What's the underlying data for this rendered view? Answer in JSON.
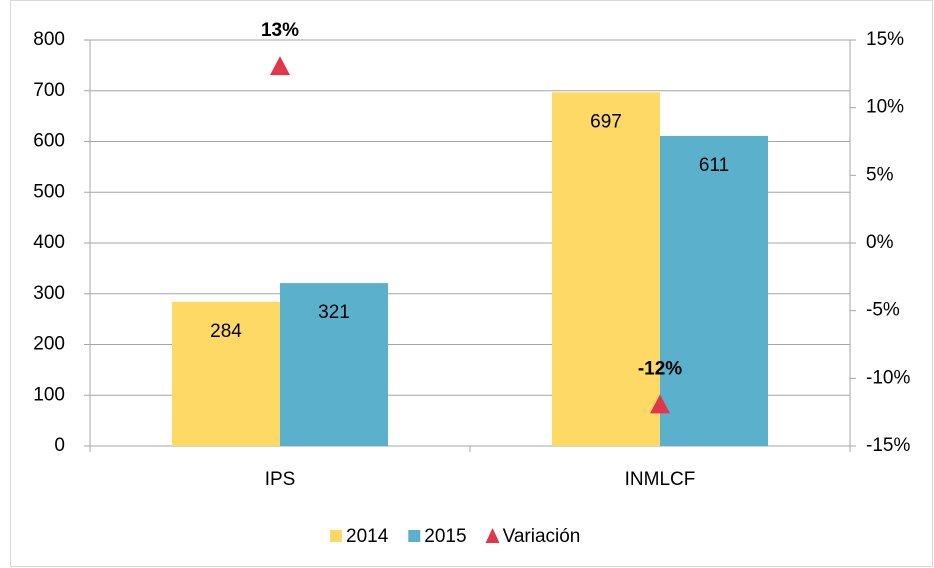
{
  "chart_data": {
    "type": "bar",
    "categories": [
      "IPS",
      "INMLCF"
    ],
    "series": [
      {
        "name": "2014",
        "color": "#ffd966",
        "values": [
          284,
          697
        ]
      },
      {
        "name": "2015",
        "color": "#5bb1cb",
        "values": [
          321,
          611
        ]
      },
      {
        "name": "Variación",
        "type": "scatter",
        "axis": "y2",
        "color": "#e0384a",
        "values": [
          13,
          -12
        ],
        "value_labels": [
          "13%",
          "-12%"
        ]
      }
    ],
    "ylim": [
      0,
      800
    ],
    "yticks": [
      0,
      100,
      200,
      300,
      400,
      500,
      600,
      700,
      800
    ],
    "y2lim": [
      -15,
      15
    ],
    "y2ticks": [
      {
        "value": -15,
        "label": "-15%"
      },
      {
        "value": -10,
        "label": "-10%"
      },
      {
        "value": -5,
        "label": "-5%"
      },
      {
        "value": 0,
        "label": "0%"
      },
      {
        "value": 5,
        "label": "5%"
      },
      {
        "value": 10,
        "label": "10%"
      },
      {
        "value": 15,
        "label": "15%"
      }
    ],
    "grid": true,
    "legend": "bottom"
  }
}
